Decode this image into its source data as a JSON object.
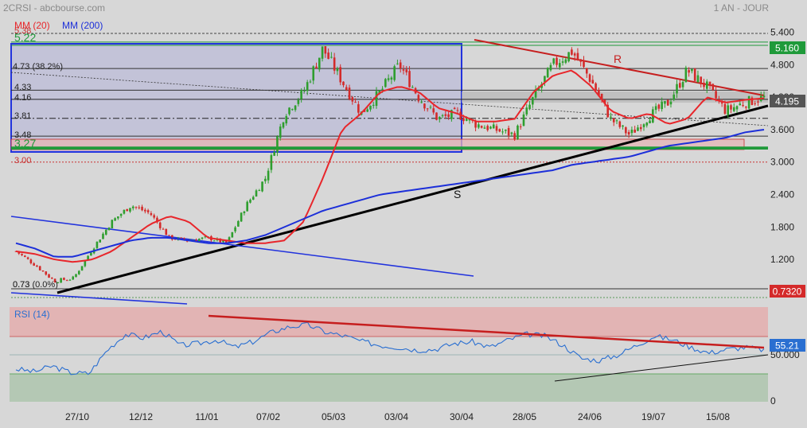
{
  "header": {
    "ticker_source": "2CRSI - abcbourse.com",
    "period": "1 AN - JOUR"
  },
  "legend": {
    "ma20": "MM (20)",
    "ma200": "MM (200)"
  },
  "colors": {
    "ma20": "#e8262b",
    "ma200": "#1c2fd9",
    "rsi": "#2a6fd1",
    "up": "#2e9e2e",
    "down": "#d32a2a",
    "resistance": "#c61e1e",
    "support": "#000000",
    "box": "#2233dd"
  },
  "price_panel": {
    "y_ticks": [
      "5.400",
      "4.800",
      "4.200",
      "3.600",
      "3.000",
      "2.400",
      "1.800",
      "1.200"
    ],
    "y_range": [
      0.7,
      5.55
    ],
    "badges": {
      "top": "5.160",
      "last": "4.195",
      "low": "0.7320"
    },
    "level_labels": [
      "5.38",
      "5.22",
      "4.73 (38.2%)",
      "4.33",
      "4.16",
      "3.81",
      "3.48",
      "3.27",
      "3.00",
      "0.73",
      "0.73 (0.0%)"
    ],
    "trend_labels": {
      "resistance": "R",
      "support": "S"
    }
  },
  "rsi_panel": {
    "title": "RSI (14)",
    "last_value": "55.21",
    "y_ticks": [
      "50.000",
      "0"
    ]
  },
  "x_labels": [
    "27/10",
    "12/12",
    "11/01",
    "07/02",
    "05/03",
    "03/04",
    "30/04",
    "28/05",
    "24/06",
    "19/07",
    "15/08"
  ],
  "chart_data": [
    {
      "type": "candlestick",
      "title": "2CRSI - abcbourse.com",
      "period": "1 AN - JOUR",
      "ylim": [
        0.7,
        5.55
      ],
      "series": [
        {
          "name": "MM (20)",
          "values": [
            1.35,
            1.3,
            1.2,
            1.15,
            1.2,
            1.35,
            1.6,
            1.85,
            2.0,
            1.9,
            1.6,
            1.55,
            1.5,
            1.5,
            1.55,
            1.9,
            2.7,
            3.6,
            3.9,
            4.3,
            4.4,
            4.3,
            4.0,
            3.9,
            3.75,
            3.75,
            3.8,
            4.3,
            4.6,
            4.7,
            4.4,
            3.95,
            3.8,
            3.9,
            3.7,
            3.8,
            4.2,
            4.1,
            4.15,
            4.18
          ]
        },
        {
          "name": "MM (200)",
          "values": [
            1.5,
            1.4,
            1.25,
            1.25,
            1.35,
            1.45,
            1.55,
            1.6,
            1.6,
            1.55,
            1.5,
            1.5,
            1.55,
            1.65,
            1.8,
            1.95,
            2.1,
            2.2,
            2.3,
            2.4,
            2.45,
            2.5,
            2.55,
            2.6,
            2.65,
            2.7,
            2.75,
            2.8,
            2.85,
            2.95,
            3.0,
            3.05,
            3.1,
            3.2,
            3.3,
            3.35,
            3.4,
            3.45,
            3.55,
            3.6
          ]
        }
      ],
      "candle_close_path": [
        1.35,
        1.1,
        0.8,
        0.85,
        1.4,
        1.9,
        2.2,
        2.05,
        1.6,
        1.55,
        1.6,
        1.5,
        2.2,
        2.7,
        3.9,
        4.3,
        5.1,
        4.5,
        3.9,
        4.3,
        4.8,
        4.2,
        3.8,
        3.9,
        3.7,
        3.6,
        3.5,
        4.2,
        4.8,
        5.05,
        4.5,
        3.8,
        3.5,
        3.85,
        4.1,
        4.7,
        4.4,
        3.95,
        4.1,
        4.195
      ],
      "levels": [
        5.38,
        5.22,
        5.16,
        4.73,
        4.33,
        4.16,
        3.81,
        3.48,
        3.27,
        3.0,
        0.73,
        0.732
      ],
      "last_price": 4.195,
      "x_tick_labels": [
        "27/10",
        "12/12",
        "11/01",
        "07/02",
        "05/03",
        "03/04",
        "30/04",
        "28/05",
        "24/06",
        "19/07",
        "15/08"
      ]
    },
    {
      "type": "line",
      "title": "RSI (14)",
      "ylim": [
        0,
        100
      ],
      "series": [
        {
          "name": "RSI (14)",
          "values": [
            35,
            32,
            38,
            31,
            30,
            55,
            72,
            68,
            75,
            60,
            62,
            66,
            58,
            64,
            74,
            80,
            82,
            74,
            70,
            64,
            60,
            58,
            55,
            56,
            62,
            64,
            58,
            66,
            72,
            70,
            60,
            46,
            44,
            50,
            60,
            70,
            66,
            58,
            52,
            56,
            58,
            55.21
          ]
        }
      ],
      "last_value": 55.21,
      "overbought": 70,
      "oversold": 30
    }
  ]
}
